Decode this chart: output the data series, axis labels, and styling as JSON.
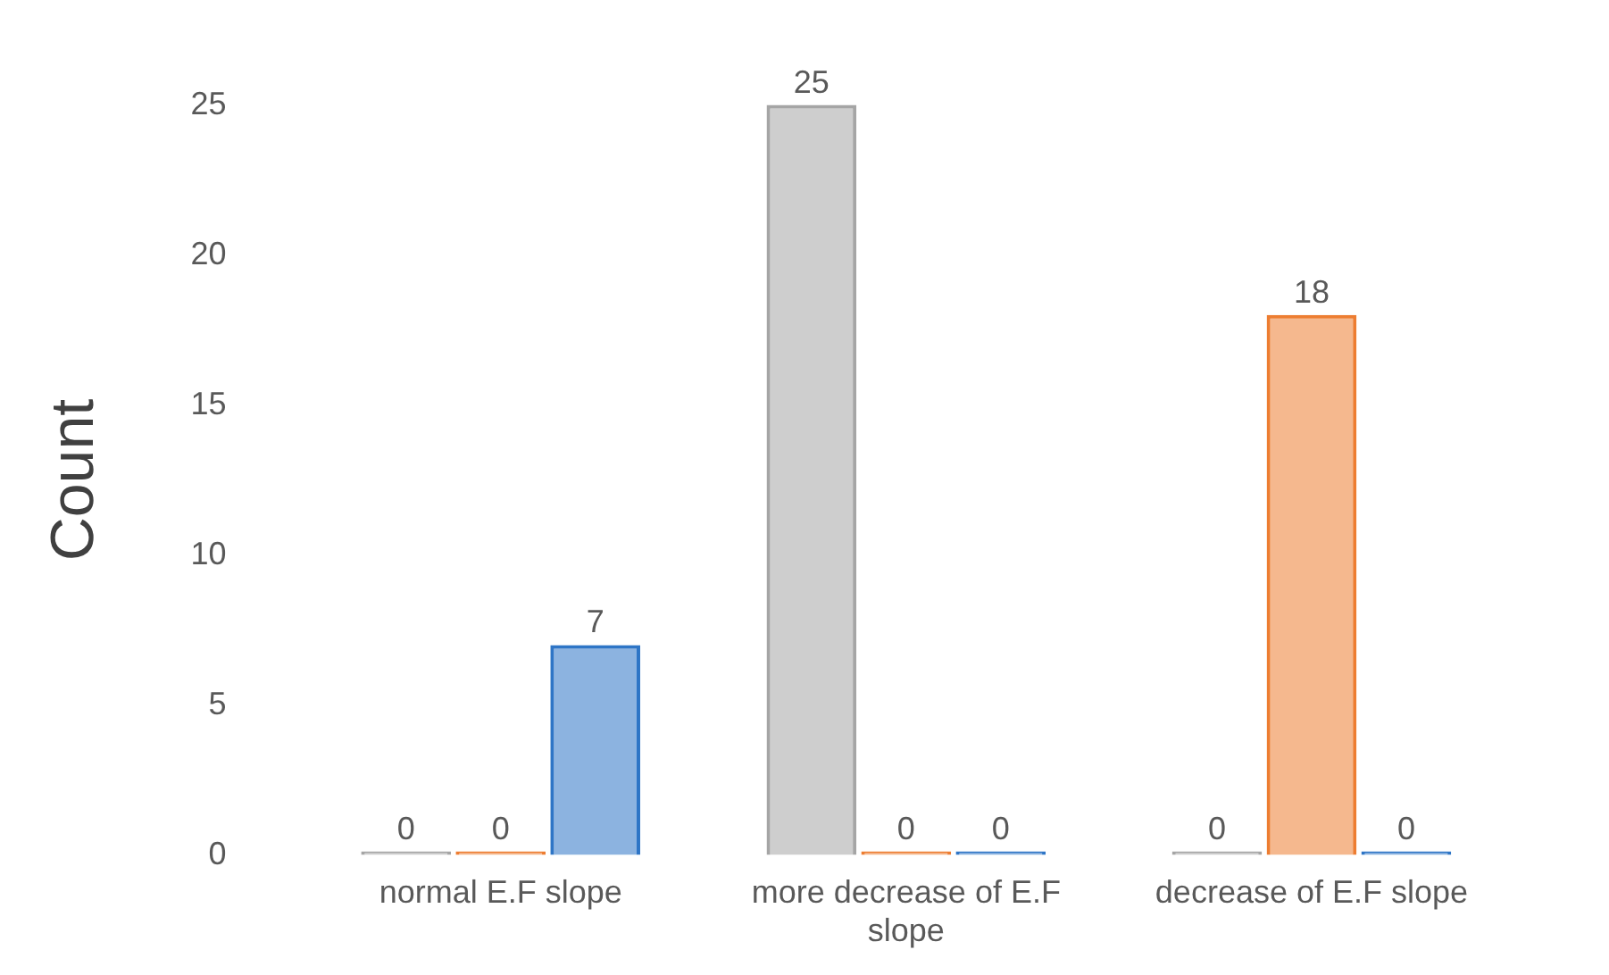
{
  "chart_data": {
    "type": "bar",
    "categories": [
      "normal E.F slope",
      "more decrease of E.F slope",
      "decrease of E.F slope"
    ],
    "series": [
      {
        "color": "#a5a5a5",
        "values": [
          0,
          25,
          0
        ]
      },
      {
        "color": "#ed7d31",
        "values": [
          0,
          0,
          18
        ]
      },
      {
        "color": "#2e75c6",
        "values": [
          7,
          0,
          0
        ]
      }
    ],
    "ylabel": "Count",
    "ylim": [
      0,
      25
    ],
    "yticks": [
      0,
      5,
      10,
      15,
      20,
      25
    ],
    "data_labels": true,
    "grid": false,
    "legend": false
  }
}
